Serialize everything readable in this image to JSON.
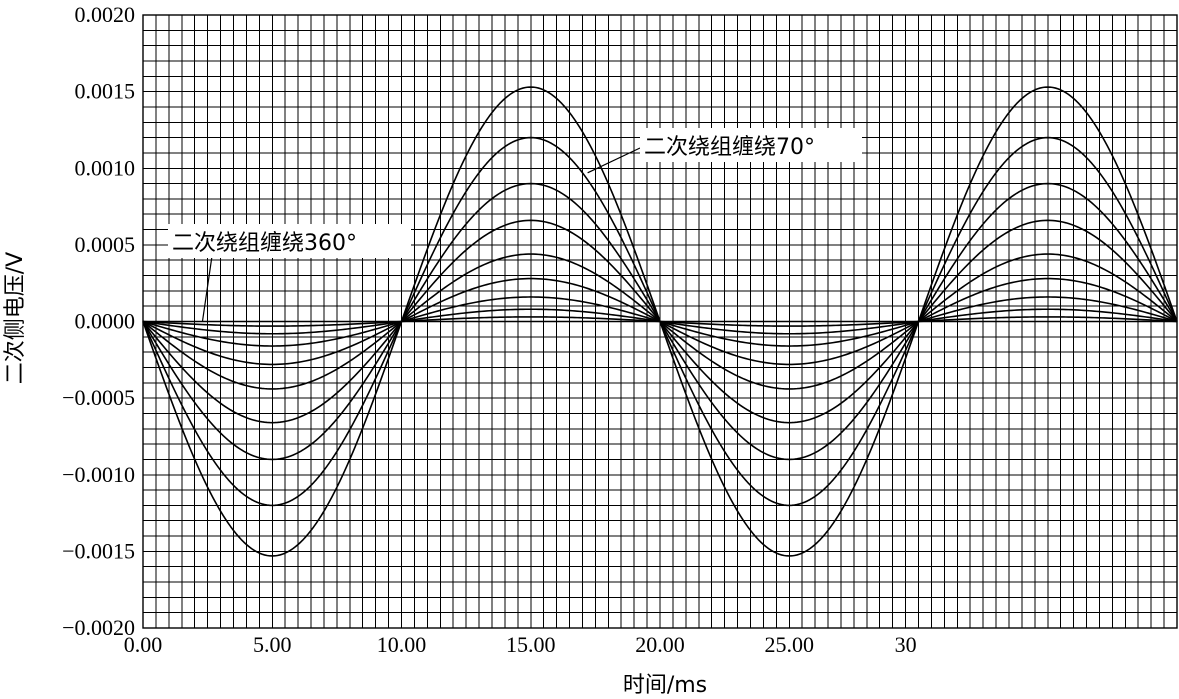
{
  "chart_data": {
    "type": "line",
    "title": "",
    "xlabel": "时间/ms",
    "ylabel": "二次侧电压/V",
    "xlim": [
      0,
      40
    ],
    "ylim": [
      -0.002,
      0.002
    ],
    "x_ticks": [
      {
        "value": 0,
        "label": "0.00"
      },
      {
        "value": 5,
        "label": "5.00"
      },
      {
        "value": 10,
        "label": "10.00"
      },
      {
        "value": 15,
        "label": "15.00"
      },
      {
        "value": 20,
        "label": "20.00"
      },
      {
        "value": 25,
        "label": "25.00"
      },
      {
        "value": 29.5,
        "label": "30"
      }
    ],
    "y_ticks": [
      {
        "value": 0.002,
        "label": "0.0020"
      },
      {
        "value": 0.0015,
        "label": "0.0015"
      },
      {
        "value": 0.001,
        "label": "0.0010"
      },
      {
        "value": 0.0005,
        "label": "0.0005"
      },
      {
        "value": 0,
        "label": "0.0000"
      },
      {
        "value": -0.0005,
        "label": "−0.0005"
      },
      {
        "value": -0.001,
        "label": "−0.0010"
      },
      {
        "value": -0.0015,
        "label": "−0.0015"
      },
      {
        "value": -0.002,
        "label": "−0.0020"
      }
    ],
    "grid": true,
    "grid_x_count": 80,
    "grid_y_count": 40,
    "waveform": "sine with period 20 ms, starting negative",
    "series": [
      {
        "amplitude": 0.00153
      },
      {
        "amplitude": 0.0012
      },
      {
        "amplitude": 0.0009
      },
      {
        "amplitude": 0.00066
      },
      {
        "amplitude": 0.00044
      },
      {
        "amplitude": 0.00028
      },
      {
        "amplitude": 0.00016
      },
      {
        "amplitude": 8e-05
      },
      {
        "amplitude": 3e-05
      },
      {
        "amplitude": 0.0
      }
    ],
    "annotations": [
      {
        "text": "二次绕组缠绕70°",
        "points_to": {
          "x": 17.2,
          "y": 0.00097
        }
      },
      {
        "text": "二次绕组缠绕360°",
        "points_to": {
          "x": 2.3,
          "y": 0.0
        }
      }
    ]
  }
}
